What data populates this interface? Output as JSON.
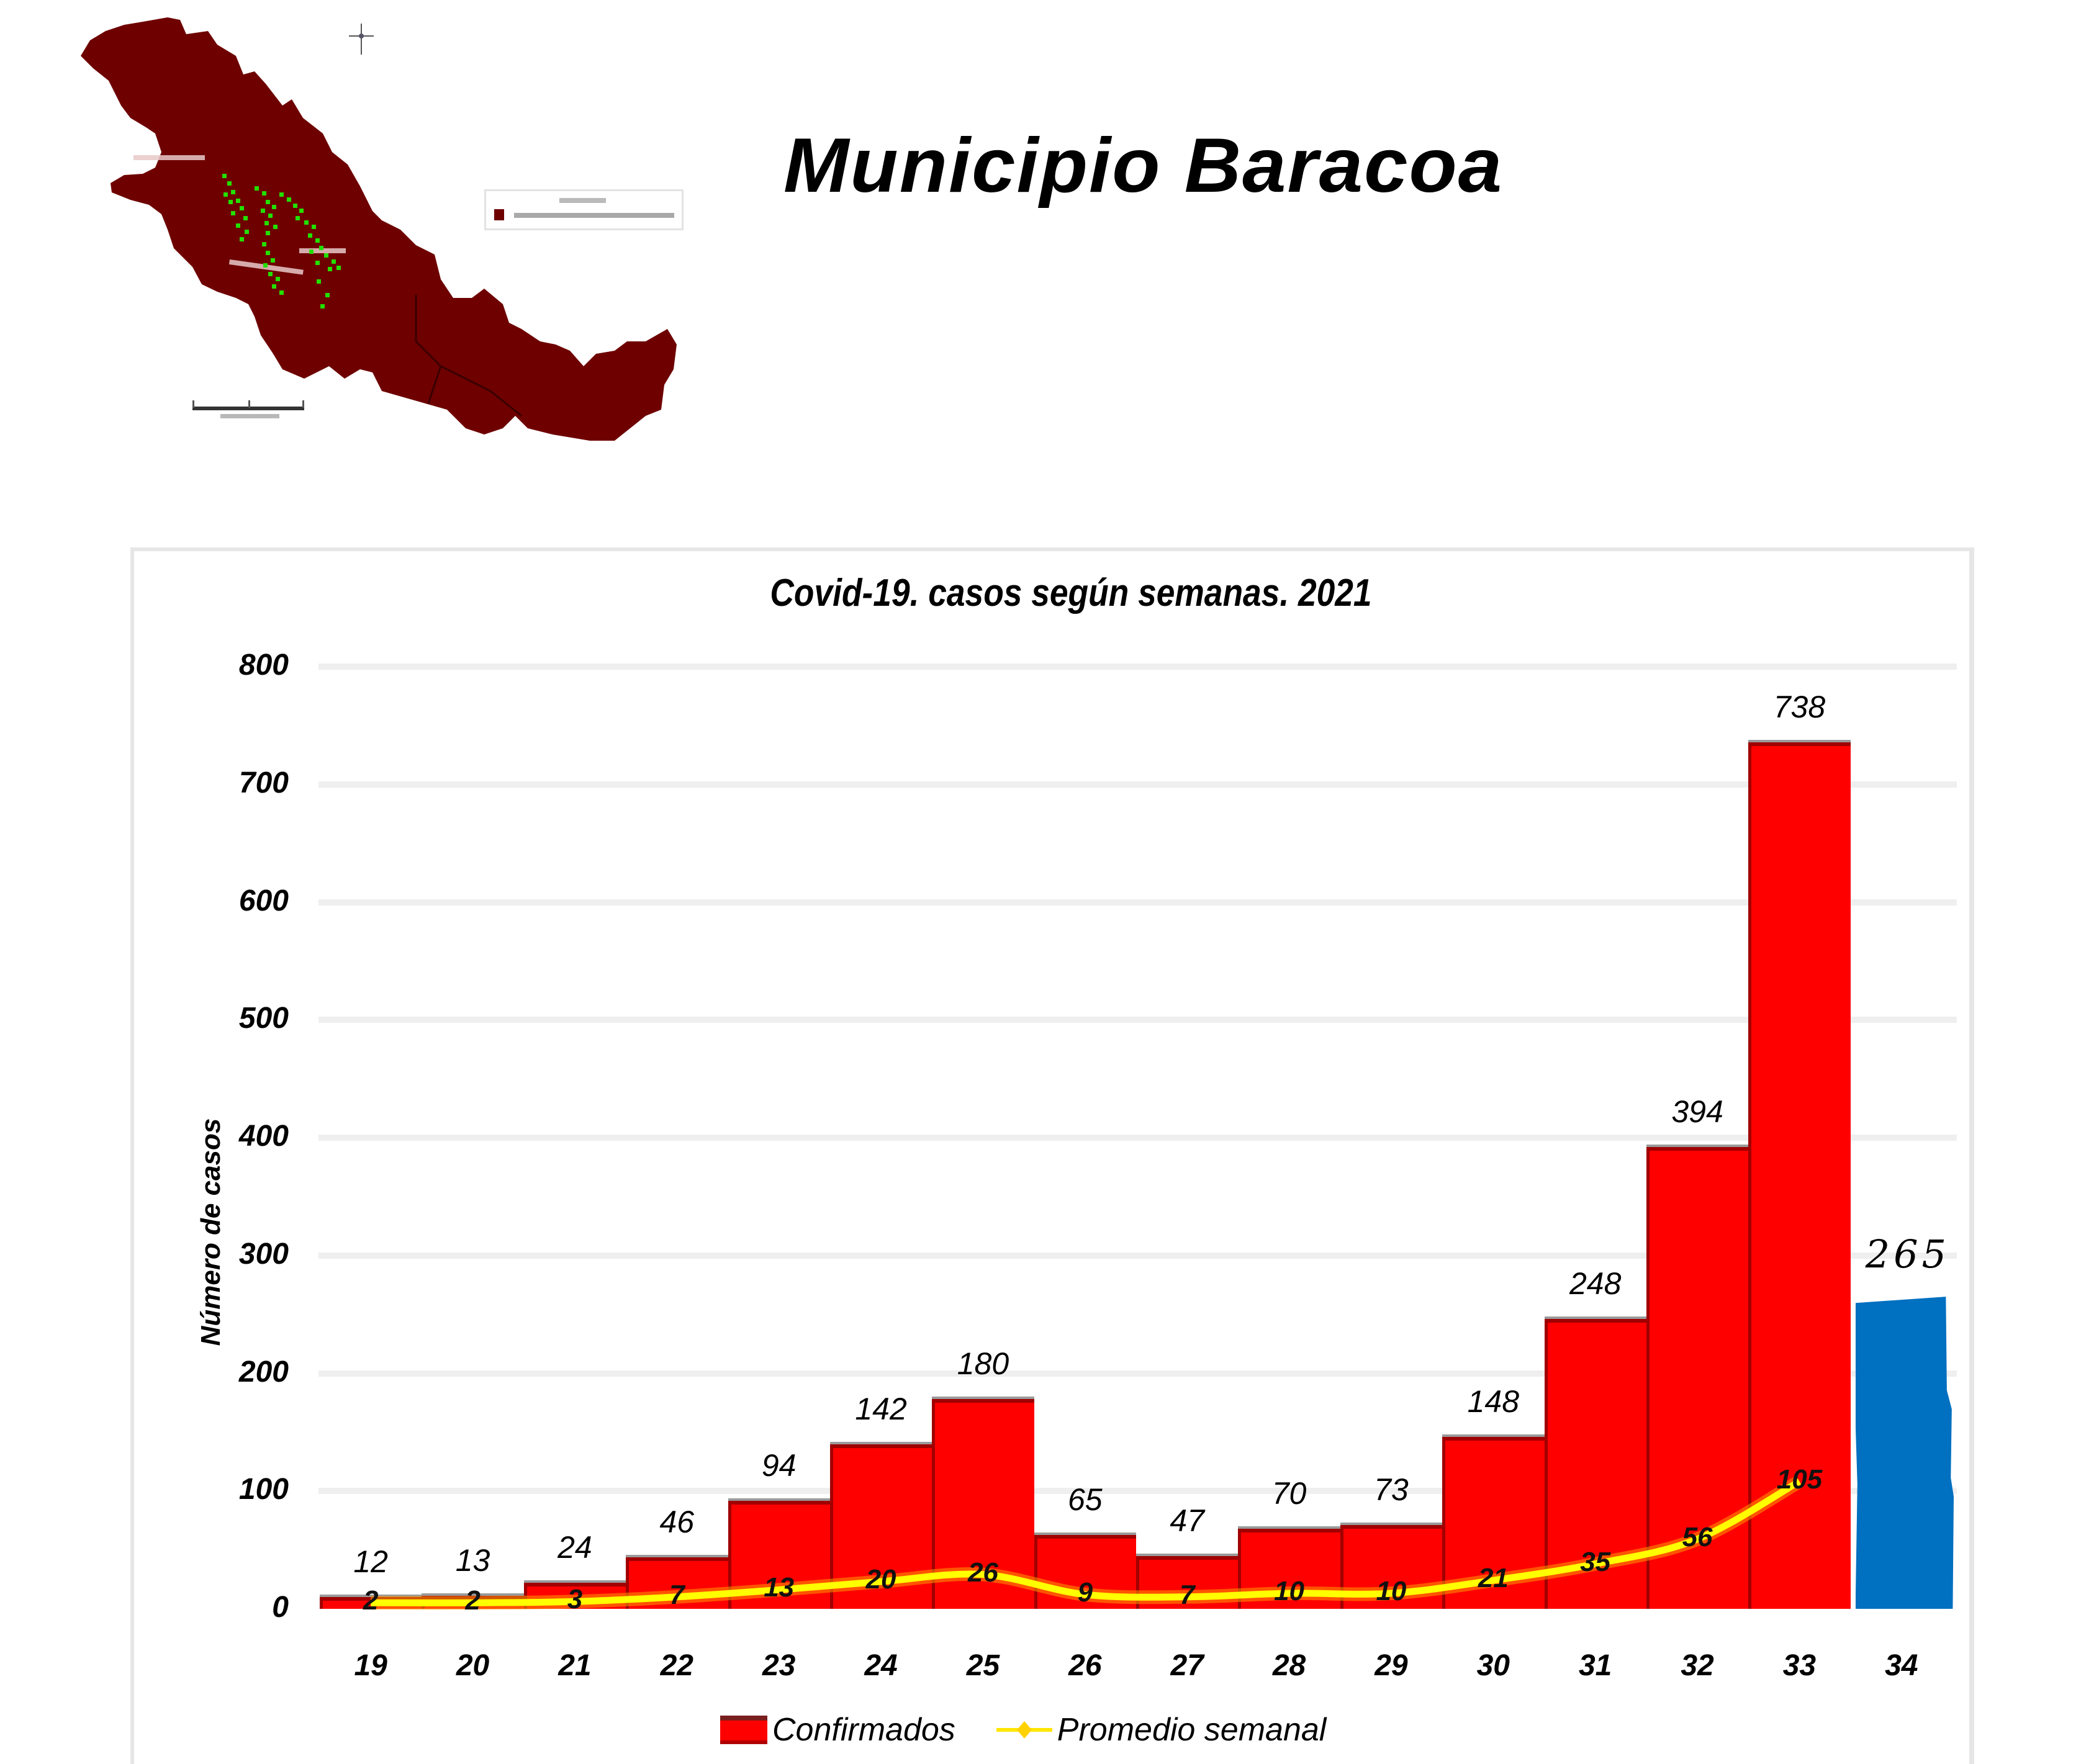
{
  "header": {
    "title": "Municipio Baracoa"
  },
  "map": {
    "region_color": "#6E0000",
    "marker_color": "#22E000",
    "compass_icon": "compass-rose-icon",
    "legend_swatch_color": "#6E0000"
  },
  "chart_data": {
    "type": "bar",
    "title": "Covid-19. casos según semanas. 2021",
    "xlabel": "",
    "ylabel": "Número de casos",
    "ylim": [
      0,
      800
    ],
    "yticks": [
      0,
      100,
      200,
      300,
      400,
      500,
      600,
      700,
      800
    ],
    "grid": true,
    "legend_position": "bottom",
    "categories": [
      "19",
      "20",
      "21",
      "22",
      "23",
      "24",
      "25",
      "26",
      "27",
      "28",
      "29",
      "30",
      "31",
      "32",
      "33",
      "34"
    ],
    "series": [
      {
        "name": "Confirmados",
        "type": "bar",
        "color": "#FF0000",
        "values": [
          12,
          13,
          24,
          46,
          94,
          142,
          180,
          65,
          47,
          70,
          73,
          148,
          248,
          394,
          738,
          265
        ],
        "highlight": {
          "category": "34",
          "color": "#0070C0",
          "note": "hand-drawn bar and label"
        }
      },
      {
        "name": "Promedio semanal",
        "type": "line",
        "color": "#FFFF00",
        "values": [
          2,
          2,
          3,
          7,
          13,
          20,
          26,
          9,
          7,
          10,
          10,
          21,
          35,
          56,
          105,
          null
        ]
      }
    ]
  },
  "legend": {
    "items": [
      {
        "label": "Confirmados",
        "icon": "square-swatch-icon"
      },
      {
        "label": "Promedio semanal",
        "icon": "line-diamond-marker-icon"
      }
    ]
  },
  "colors": {
    "bar": "#FF0000",
    "bar_border": "#A00000",
    "highlight_bar": "#0070C0",
    "line": "#FFFF00",
    "line_glow": "#FF9900",
    "grid": "#EFEFEF",
    "frame": "#E6E6E6"
  }
}
